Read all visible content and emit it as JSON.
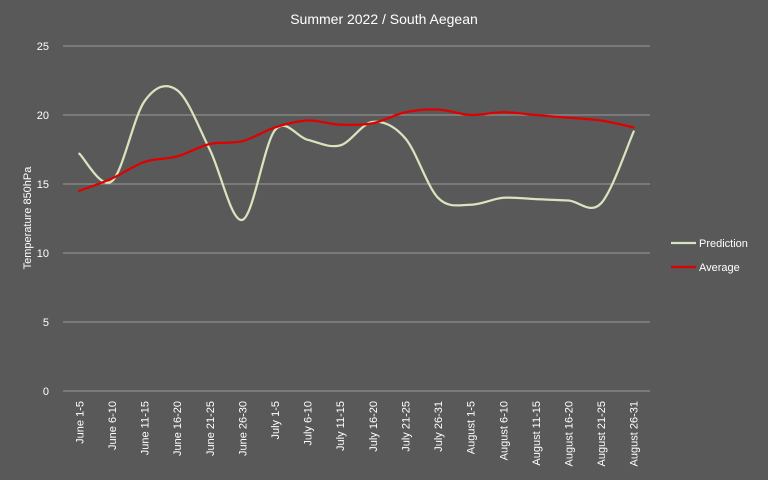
{
  "chart_data": {
    "type": "line",
    "title": "Summer 2022 / South Aegean",
    "xlabel": "",
    "ylabel": "Temperature 850hPa",
    "ylim": [
      0,
      25
    ],
    "yticks": [
      0,
      5,
      10,
      15,
      20,
      25
    ],
    "grid": true,
    "legend": "right",
    "background": "#595959",
    "gridColor": "#9a9a9a",
    "categories": [
      "June 1-5",
      "June 6-10",
      "June 11-15",
      "June 16-20",
      "June 21-25",
      "June 26-30",
      "July 1-5",
      "July 6-10",
      "July 11-15",
      "July 16-20",
      "July 21-25",
      "July 26-31",
      "August 1-5",
      "August 6-10",
      "August 11-15",
      "August 16-20",
      "August 21-25",
      "August 26-31"
    ],
    "series": [
      {
        "name": "Prediction",
        "color": "#d7e4bd",
        "values": [
          17.2,
          15.2,
          21.0,
          21.8,
          17.5,
          12.4,
          18.9,
          18.2,
          17.8,
          19.5,
          18.3,
          14.0,
          13.5,
          14.0,
          13.9,
          13.8,
          13.6,
          18.8
        ]
      },
      {
        "name": "Average",
        "color": "#e00000",
        "values": [
          14.5,
          15.4,
          16.6,
          17.0,
          17.9,
          18.1,
          19.1,
          19.6,
          19.3,
          19.4,
          20.2,
          20.4,
          20.0,
          20.2,
          20.0,
          19.8,
          19.6,
          19.1
        ]
      }
    ]
  }
}
